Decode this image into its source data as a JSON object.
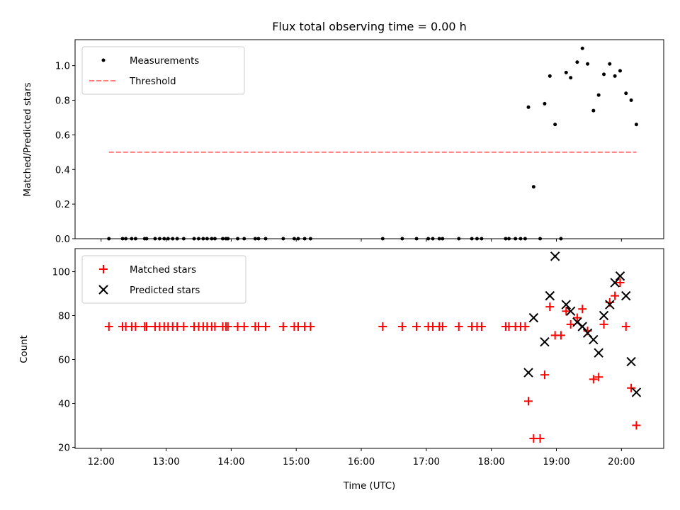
{
  "chart_data": [
    {
      "type": "scatter",
      "title": "Flux total observing time = 0.00 h",
      "xlabel": "",
      "ylabel": "Matched/Predicted stars",
      "x_unit": "hours (UTC)",
      "xlim": [
        11.6,
        20.65
      ],
      "ylim": [
        0.0,
        1.15
      ],
      "yticks": [
        0.0,
        0.2,
        0.4,
        0.6,
        0.8,
        1.0
      ],
      "yticklabels": [
        "0.0",
        "0.2",
        "0.4",
        "0.6",
        "0.8",
        "1.0"
      ],
      "legend_position": "top-left",
      "colors": {
        "measurements": "#000000",
        "threshold": "#ff7f7f"
      },
      "series": [
        {
          "name": "Measurements",
          "marker": "dot",
          "x": [
            12.12,
            12.33,
            12.38,
            12.47,
            12.53,
            12.67,
            12.7,
            12.83,
            12.9,
            12.97,
            13.03,
            13.1,
            13.17,
            13.27,
            13.43,
            13.5,
            13.57,
            13.63,
            13.7,
            13.75,
            13.87,
            13.92,
            13.95,
            14.1,
            14.2,
            14.37,
            14.42,
            14.53,
            14.8,
            14.97,
            15.03,
            15.13,
            15.22,
            16.33,
            16.63,
            16.85,
            17.03,
            17.1,
            17.2,
            17.25,
            17.5,
            17.7,
            17.78,
            17.85,
            18.22,
            18.27,
            18.37,
            18.45,
            18.52,
            18.57,
            18.65,
            18.75,
            18.82,
            18.9,
            18.98,
            19.07,
            19.15,
            19.22,
            19.32,
            19.4,
            19.48,
            19.57,
            19.65,
            19.73,
            19.82,
            19.9,
            19.98,
            20.07,
            20.15,
            20.23
          ],
          "y": [
            0,
            0,
            0,
            0,
            0,
            0,
            0,
            0,
            0,
            0,
            0,
            0,
            0,
            0,
            0,
            0,
            0,
            0,
            0,
            0,
            0,
            0,
            0,
            0,
            0,
            0,
            0,
            0,
            0,
            0,
            0,
            0,
            0,
            0,
            0,
            0,
            0,
            0,
            0,
            0,
            0,
            0,
            0,
            0,
            0,
            0,
            0,
            0,
            0,
            0.76,
            0.3,
            0,
            0.78,
            0.94,
            0.66,
            0,
            0.96,
            0.93,
            1.02,
            1.1,
            1.01,
            0.74,
            0.83,
            0.95,
            1.01,
            0.94,
            0.97,
            0.84,
            0.8,
            0.66
          ]
        },
        {
          "name": "Threshold",
          "marker": "dashed-line",
          "x": [
            12.12,
            20.23
          ],
          "y": [
            0.5,
            0.5
          ]
        }
      ]
    },
    {
      "type": "scatter",
      "title": "",
      "xlabel": "Time (UTC)",
      "ylabel": "Count",
      "x_unit": "hours (UTC)",
      "xlim": [
        11.6,
        20.65
      ],
      "ylim": [
        19.5,
        110.5
      ],
      "xticks": [
        12,
        13,
        14,
        15,
        16,
        17,
        18,
        19,
        20
      ],
      "xticklabels": [
        "12:00",
        "13:00",
        "14:00",
        "15:00",
        "16:00",
        "17:00",
        "18:00",
        "19:00",
        "20:00"
      ],
      "yticks": [
        20,
        40,
        60,
        80,
        100
      ],
      "yticklabels": [
        "20",
        "40",
        "60",
        "80",
        "100"
      ],
      "legend_position": "top-left",
      "colors": {
        "matched": "#ff0000",
        "predicted": "#000000"
      },
      "series": [
        {
          "name": "Matched stars",
          "marker": "plus",
          "x": [
            12.12,
            12.33,
            12.38,
            12.47,
            12.53,
            12.67,
            12.7,
            12.83,
            12.9,
            12.97,
            13.03,
            13.1,
            13.17,
            13.27,
            13.43,
            13.5,
            13.57,
            13.63,
            13.7,
            13.75,
            13.87,
            13.92,
            13.95,
            14.1,
            14.2,
            14.37,
            14.42,
            14.53,
            14.8,
            14.97,
            15.03,
            15.13,
            15.22,
            16.33,
            16.63,
            16.85,
            17.03,
            17.1,
            17.2,
            17.25,
            17.5,
            17.7,
            17.78,
            17.85,
            18.22,
            18.27,
            18.37,
            18.45,
            18.52,
            18.57,
            18.65,
            18.75,
            18.82,
            18.9,
            18.98,
            19.07,
            19.15,
            19.22,
            19.32,
            19.4,
            19.48,
            19.57,
            19.65,
            19.73,
            19.82,
            19.9,
            19.98,
            20.07,
            20.15,
            20.23
          ],
          "y": [
            75,
            75,
            75,
            75,
            75,
            75,
            75,
            75,
            75,
            75,
            75,
            75,
            75,
            75,
            75,
            75,
            75,
            75,
            75,
            75,
            75,
            75,
            75,
            75,
            75,
            75,
            75,
            75,
            75,
            75,
            75,
            75,
            75,
            75,
            75,
            75,
            75,
            75,
            75,
            75,
            75,
            75,
            75,
            75,
            75,
            75,
            75,
            75,
            75,
            41,
            24,
            24,
            53,
            84,
            71,
            71,
            82,
            76,
            79,
            83,
            73,
            51,
            52,
            76,
            86,
            89,
            95,
            75,
            47,
            30
          ]
        },
        {
          "name": "Predicted stars",
          "marker": "x",
          "x": [
            18.57,
            18.65,
            18.82,
            18.9,
            18.98,
            19.15,
            19.22,
            19.32,
            19.4,
            19.48,
            19.57,
            19.65,
            19.73,
            19.82,
            19.9,
            19.98,
            20.07,
            20.15,
            20.23
          ],
          "y": [
            54,
            79,
            68,
            89,
            107,
            85,
            82,
            77,
            75,
            72,
            69,
            63,
            80,
            85,
            95,
            98,
            89,
            59,
            45
          ]
        }
      ]
    }
  ]
}
